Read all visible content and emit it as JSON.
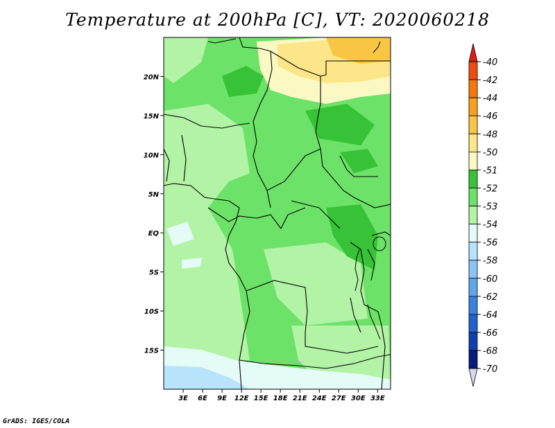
{
  "title": "Temperature at 200hPa [C], VT: 2020060218",
  "credit": "GrADS: IGES/COLA",
  "map": {
    "lon_range": [
      0,
      35
    ],
    "lat_range": [
      -20,
      25
    ],
    "lon_ticks": [
      3,
      6,
      9,
      12,
      15,
      18,
      21,
      24,
      27,
      30,
      33
    ],
    "lon_tick_labels": [
      "3E",
      "6E",
      "9E",
      "12E",
      "15E",
      "18E",
      "21E",
      "24E",
      "27E",
      "30E",
      "33E"
    ],
    "lat_ticks": [
      20,
      15,
      10,
      5,
      0,
      -5,
      -10,
      -15
    ],
    "lat_tick_labels": [
      "20N",
      "15N",
      "10N",
      "5N",
      "EQ",
      "5S",
      "10S",
      "15S"
    ]
  },
  "colorbar": {
    "labels": [
      "-40",
      "-42",
      "-44",
      "-46",
      "-48",
      "-50",
      "-51",
      "-52",
      "-53",
      "-54",
      "-56",
      "-58",
      "-60",
      "-62",
      "-64",
      "-66",
      "-68",
      "-70"
    ],
    "colors": [
      "#e11c12",
      "#f24a0d",
      "#f7770d",
      "#f7a11f",
      "#f9c544",
      "#fde68a",
      "#fbf9c3",
      "#37c238",
      "#6de268",
      "#b2f3a6",
      "#e4fbf7",
      "#b7e4fb",
      "#8ac5f5",
      "#5fa6ec",
      "#3c82dd",
      "#2162cb",
      "#0e41b0",
      "#081c7c",
      "#d7d7f1"
    ]
  }
}
